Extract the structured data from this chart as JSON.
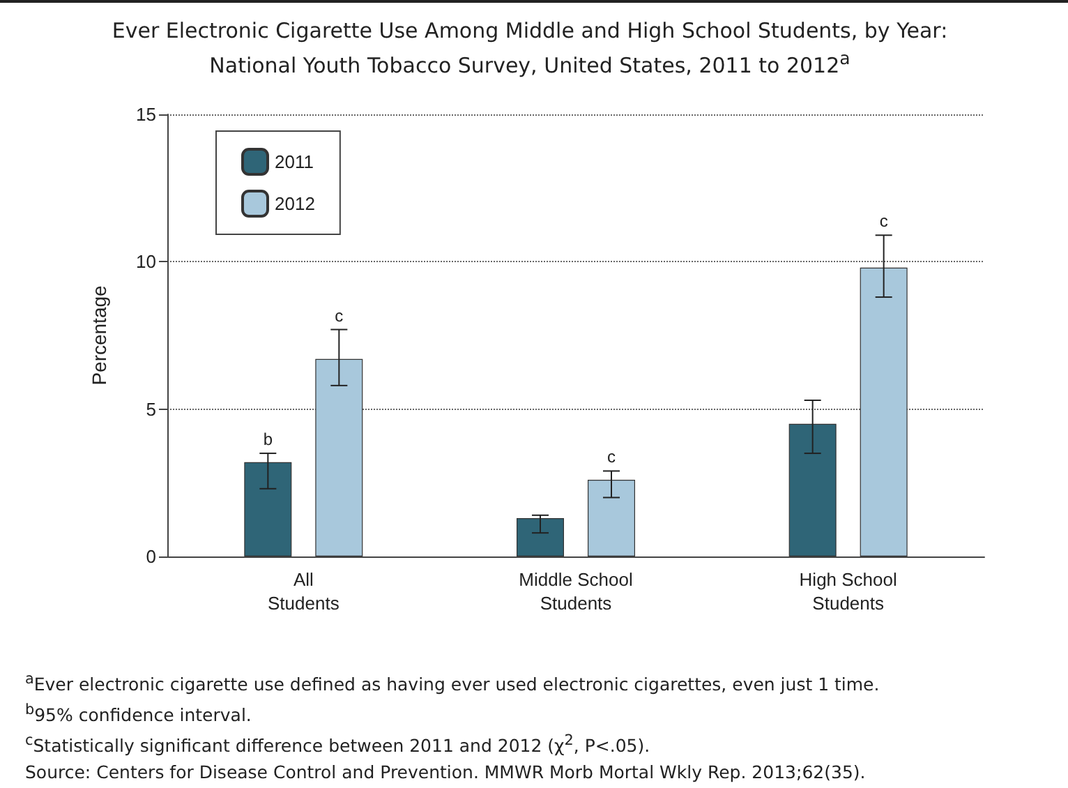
{
  "chart_data": {
    "type": "bar",
    "title": "Ever Electronic Cigarette Use Among Middle and High School Students, by Year: National Youth Tobacco Survey, United States, 2011 to 2012$^{a}$",
    "ylabel": "Percentage",
    "categories": [
      "All Students",
      "Middle School Students",
      "High School Students"
    ],
    "series": [
      {
        "name": "2011",
        "color": "#2f6577",
        "values": [
          3.2,
          1.3,
          4.5
        ],
        "errors": [
          [
            2.3,
            3.5
          ],
          [
            0.8,
            1.4
          ],
          [
            3.5,
            5.3
          ]
        ],
        "value_labels": [
          "b",
          null,
          null
        ]
      },
      {
        "name": "2012",
        "color": "#a8c8dc",
        "values": [
          6.7,
          2.6,
          9.8
        ],
        "errors": [
          [
            5.8,
            7.7
          ],
          [
            2.0,
            2.9
          ],
          [
            8.8,
            10.9
          ]
        ],
        "value_labels": [
          "c",
          "c",
          "c"
        ]
      }
    ],
    "ylim": [
      0,
      15
    ],
    "yticks": [
      0,
      5,
      10,
      15
    ],
    "grid": "y",
    "legend": "top left",
    "annotations": [
      "$^{a}$Ever electronic cigarette use defined as having ever used electronic cigarettes, even just 1 time.",
      "$^{b}$95% confidence interval.",
      "$^{c}$Statistically significant difference between 2011 and 2012 (χ$^{2}$, P<.05).",
      "Source: Centers for Disease Control and Prevention. MMWR Morb Mortal Wkly Rep. 2013;62(35)."
    ]
  }
}
